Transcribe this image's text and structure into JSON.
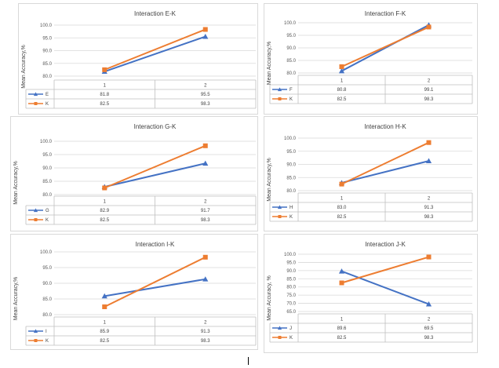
{
  "chart_data": [
    {
      "type": "line",
      "title": "Interaction E-K",
      "ylabel": "Mean Accuracy,%",
      "categories": [
        "1",
        "2"
      ],
      "yticks": [
        "100.0",
        "95.0",
        "90.0",
        "85.0",
        "80.0"
      ],
      "ylim": [
        80,
        100
      ],
      "series": [
        {
          "name": "E",
          "values": [
            "81.8",
            "95.5"
          ],
          "color": "#4472c4",
          "marker": "triangle"
        },
        {
          "name": "K",
          "values": [
            "82.5",
            "98.3"
          ],
          "color": "#ed7d31",
          "marker": "square"
        }
      ]
    },
    {
      "type": "line",
      "title": "Interaction F-K",
      "ylabel": "Mean Accuracy,%",
      "categories": [
        "1",
        "2"
      ],
      "yticks": [
        "100.0",
        "95.0",
        "90.0",
        "85.0",
        "80.0"
      ],
      "ylim": [
        80,
        100
      ],
      "series": [
        {
          "name": "F",
          "values": [
            "80.8",
            "99.1"
          ],
          "color": "#4472c4",
          "marker": "triangle"
        },
        {
          "name": "K",
          "values": [
            "82.5",
            "98.3"
          ],
          "color": "#ed7d31",
          "marker": "square"
        }
      ]
    },
    {
      "type": "line",
      "title": "Interaction G-K",
      "ylabel": "Mean Accuracy,%",
      "categories": [
        "1",
        "2"
      ],
      "yticks": [
        "100.0",
        "95.0",
        "90.0",
        "85.0",
        "80.0"
      ],
      "ylim": [
        80,
        100
      ],
      "series": [
        {
          "name": "G",
          "values": [
            "82.9",
            "91.7"
          ],
          "color": "#4472c4",
          "marker": "triangle"
        },
        {
          "name": "K",
          "values": [
            "82.5",
            "98.3"
          ],
          "color": "#ed7d31",
          "marker": "square"
        }
      ]
    },
    {
      "type": "line",
      "title": "Interaction H-K",
      "ylabel": "Mean Accuracy,%",
      "categories": [
        "1",
        "2"
      ],
      "yticks": [
        "100.0",
        "95.0",
        "90.0",
        "85.0",
        "80.0"
      ],
      "ylim": [
        80,
        100
      ],
      "series": [
        {
          "name": "H",
          "values": [
            "83.0",
            "91.3"
          ],
          "color": "#4472c4",
          "marker": "triangle"
        },
        {
          "name": "K",
          "values": [
            "82.5",
            "98.3"
          ],
          "color": "#ed7d31",
          "marker": "square"
        }
      ]
    },
    {
      "type": "line",
      "title": "Interaction I-K",
      "ylabel": "Mean Accuracy,%",
      "categories": [
        "1",
        "2"
      ],
      "yticks": [
        "100.0",
        "95.0",
        "90.0",
        "85.0",
        "80.0"
      ],
      "ylim": [
        80,
        100
      ],
      "series": [
        {
          "name": "I",
          "values": [
            "85.9",
            "91.3"
          ],
          "color": "#4472c4",
          "marker": "triangle"
        },
        {
          "name": "K",
          "values": [
            "82.5",
            "98.3"
          ],
          "color": "#ed7d31",
          "marker": "square"
        }
      ]
    },
    {
      "type": "line",
      "title": "Interaction J-K",
      "ylabel": "Mean Accuracy, %",
      "categories": [
        "1",
        "2"
      ],
      "yticks": [
        "100.0",
        "95.0",
        "90.0",
        "85.0",
        "80.0",
        "75.0",
        "70.0",
        "65.0"
      ],
      "ylim": [
        65,
        100
      ],
      "series": [
        {
          "name": "J",
          "values": [
            "89.6",
            "69.5"
          ],
          "color": "#4472c4",
          "marker": "triangle"
        },
        {
          "name": "K",
          "values": [
            "82.5",
            "98.3"
          ],
          "color": "#ed7d31",
          "marker": "square"
        }
      ]
    }
  ]
}
